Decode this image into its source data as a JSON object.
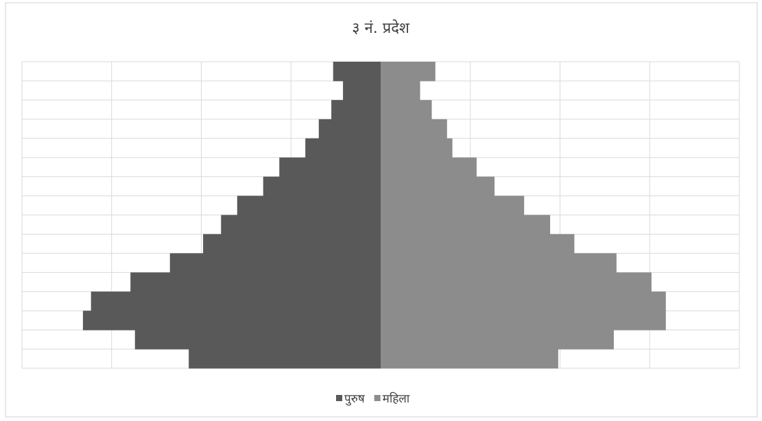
{
  "chart_data": {
    "type": "pyramid",
    "title": "३ नं. प्रदेश",
    "categories": [
      null,
      null,
      null,
      null,
      null,
      null,
      null,
      null,
      null,
      null,
      null,
      null,
      null,
      null,
      null,
      null
    ],
    "series": [
      {
        "name": "पुरुष",
        "color": "#595959",
        "side": "left",
        "values": [
          0.53,
          0.42,
          0.55,
          0.69,
          0.84,
          1.13,
          1.31,
          1.6,
          1.78,
          1.98,
          2.35,
          2.79,
          3.23,
          3.32,
          2.74,
          2.14
        ]
      },
      {
        "name": "महिला",
        "color": "#8c8c8c",
        "side": "right",
        "values": [
          0.61,
          0.44,
          0.57,
          0.74,
          0.8,
          1.07,
          1.27,
          1.6,
          1.89,
          2.16,
          2.63,
          3.02,
          3.18,
          3.18,
          2.6,
          1.98
        ]
      }
    ],
    "xlim": [
      0,
      4
    ],
    "xticks": [
      0,
      1,
      2,
      3,
      4
    ],
    "grid": true,
    "legend": "bottom"
  }
}
